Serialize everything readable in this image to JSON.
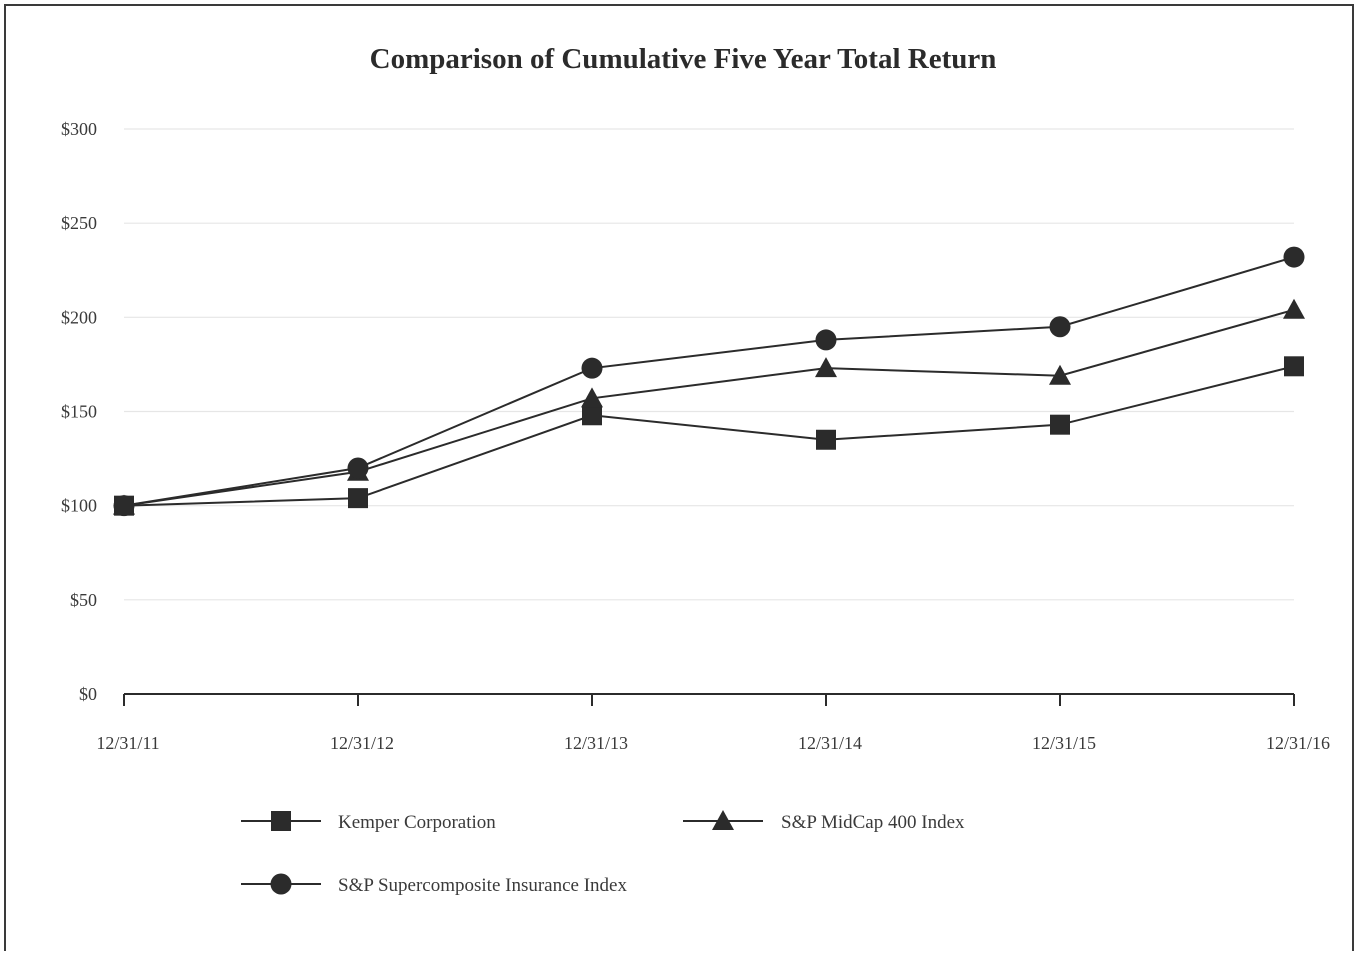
{
  "chart_data": {
    "type": "line",
    "title": "Comparison of Cumulative Five Year Total Return",
    "categories": [
      "12/31/11",
      "12/31/12",
      "12/31/13",
      "12/31/14",
      "12/31/15",
      "12/31/16"
    ],
    "ylim": [
      0,
      300
    ],
    "y_ticks": [
      0,
      50,
      100,
      150,
      200,
      250,
      300
    ],
    "y_tick_labels": [
      "$0",
      "$50",
      "$100",
      "$150",
      "$200",
      "$250",
      "$300"
    ],
    "grid": true,
    "legend_placement": "bottom",
    "series": [
      {
        "name": "Kemper Corporation",
        "marker": "square",
        "values": [
          100,
          104,
          148,
          135,
          143,
          174
        ]
      },
      {
        "name": "S&P MidCap 400 Index",
        "marker": "triangle",
        "values": [
          100,
          118,
          157,
          173,
          169,
          204
        ]
      },
      {
        "name": "S&P Supercomposite Insurance Index",
        "marker": "circle",
        "values": [
          100,
          120,
          173,
          188,
          195,
          232
        ]
      }
    ],
    "colors": {
      "line": "#2b2b2b",
      "grid": "#e6e6e6",
      "text": "#3a3a3a"
    }
  }
}
